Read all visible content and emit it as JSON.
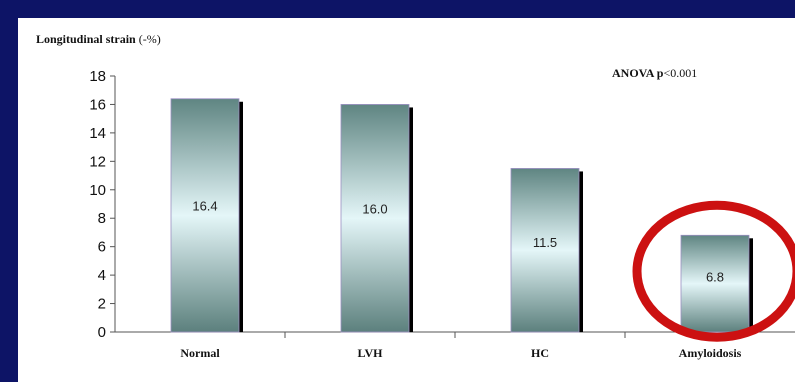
{
  "chart_data": {
    "type": "bar",
    "title": "Longitudinal strain",
    "title_unit": "(-%)",
    "annotation_label": "ANOVA p",
    "annotation_value": "<0.001",
    "categories": [
      "Normal",
      "LVH",
      "HC",
      "Amyloidosis"
    ],
    "values": [
      16.4,
      16.0,
      11.5,
      6.8
    ],
    "value_labels": [
      "16.4",
      "16.0",
      "11.5",
      "6.8"
    ],
    "ylim": [
      0,
      18
    ],
    "yticks": [
      0,
      2,
      4,
      6,
      8,
      10,
      12,
      14,
      16,
      18
    ],
    "grid": false,
    "highlight_category": "Amyloidosis",
    "highlight_color": "#cc1111",
    "bar_color_top": "#5f8582",
    "bar_color_mid": "#e4f6f8",
    "bar_color_bottom": "#5c807d",
    "background_color": "#0d1466"
  }
}
